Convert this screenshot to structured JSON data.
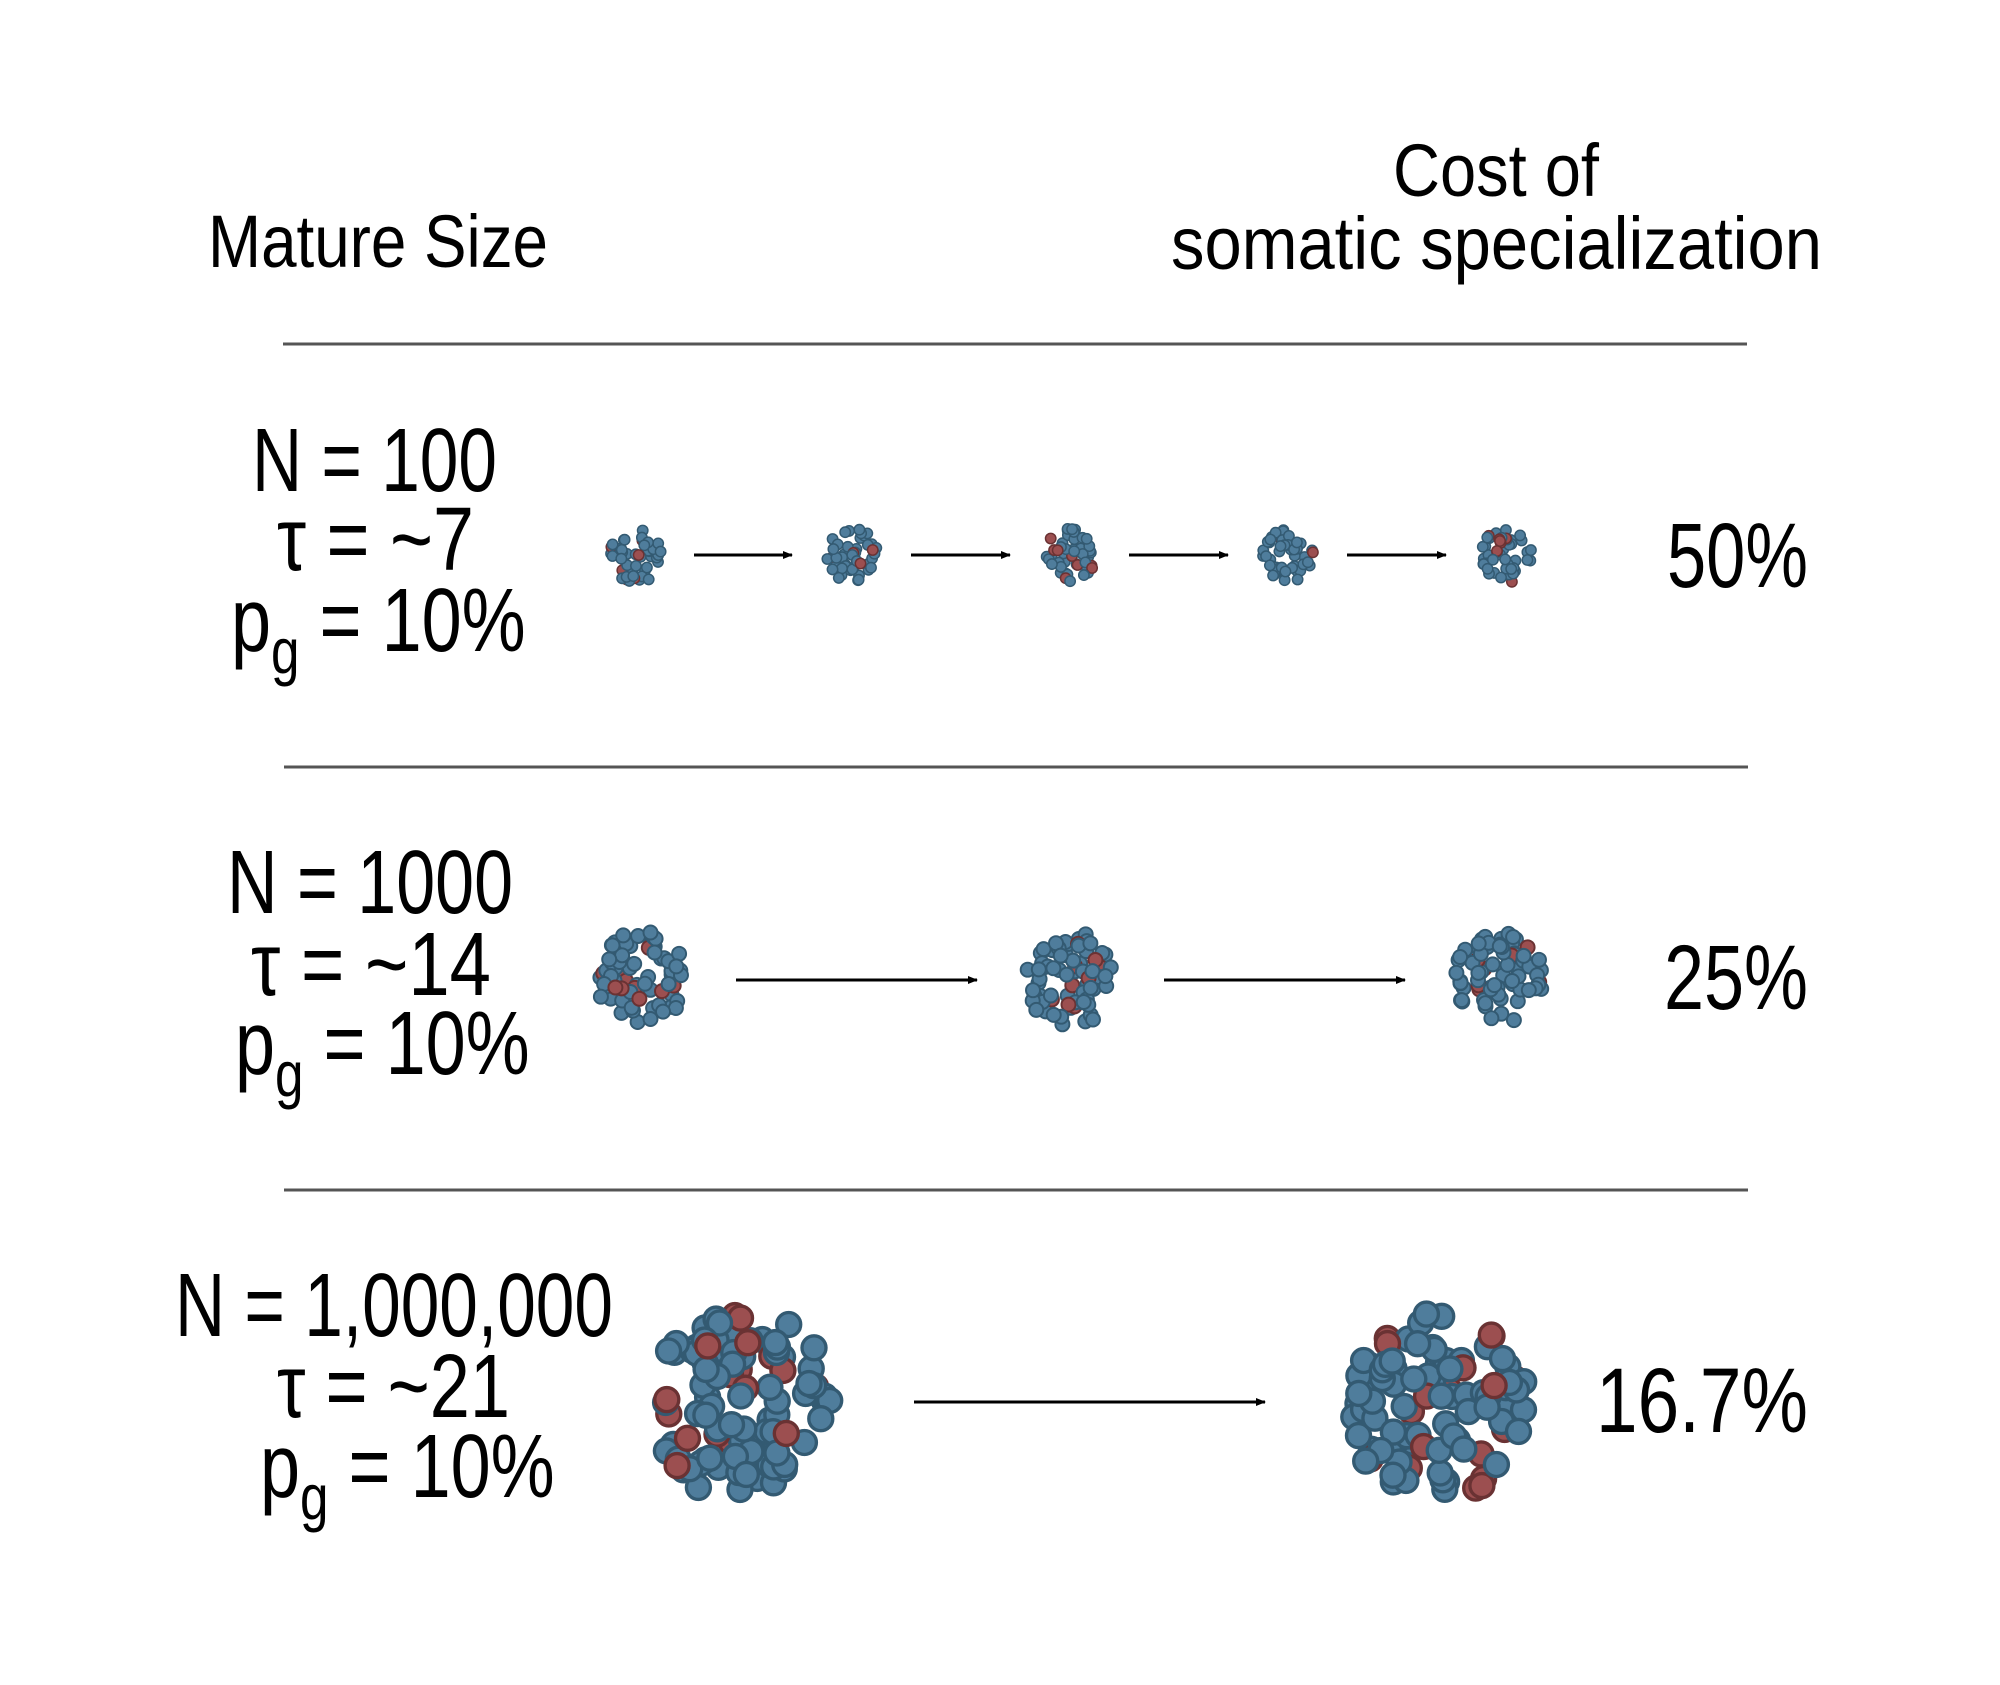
{
  "headers": {
    "mature_size": "Mature Size",
    "cost_line1": "Cost of",
    "cost_line2": "somatic specialization"
  },
  "rows": [
    {
      "n": "N = 100",
      "tau": "τ = ~7",
      "p": "p",
      "p_sub": "g",
      "p_value": " = 10%",
      "cost": "50%",
      "clusters": 5
    },
    {
      "n": "N = 1000",
      "tau": "τ = ~14",
      "p": "p",
      "p_sub": "g",
      "p_value": " = 10%",
      "cost": "25%",
      "clusters": 3
    },
    {
      "n": "N = 1,000,000",
      "tau": "τ = ~21",
      "p": "p",
      "p_sub": "g",
      "p_value": " = 10%",
      "cost": "16.7%",
      "clusters": 2
    }
  ],
  "colors": {
    "soma_fill": "#4f7d9c",
    "soma_stroke": "#335a72",
    "germ_fill": "#9c4f50",
    "germ_stroke": "#6a3233",
    "divider": "#555555"
  }
}
